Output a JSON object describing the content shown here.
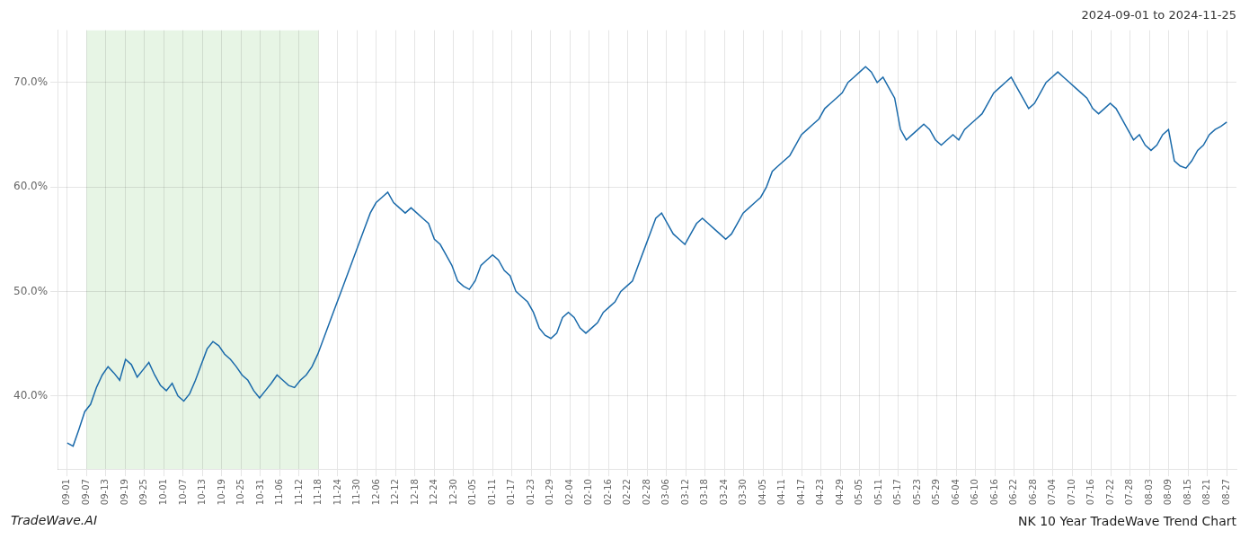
{
  "chart_data": {
    "type": "line",
    "title": "NK 10 Year TradeWave Trend Chart",
    "subtitle": "2024-09-01 to 2024-11-25",
    "annotations": [
      "TradeWave.AI"
    ],
    "color": "#1a6aaa",
    "grid": true,
    "xlim": [
      -0.5,
      60.5
    ],
    "xticks": [
      {
        "value": 0,
        "label": "09-01"
      },
      {
        "value": 1,
        "label": "09-07"
      },
      {
        "value": 2,
        "label": "09-13"
      },
      {
        "value": 3,
        "label": "09-19"
      },
      {
        "value": 4,
        "label": "09-25"
      },
      {
        "value": 5,
        "label": "10-01"
      },
      {
        "value": 6,
        "label": "10-07"
      },
      {
        "value": 7,
        "label": "10-13"
      },
      {
        "value": 8,
        "label": "10-19"
      },
      {
        "value": 9,
        "label": "10-25"
      },
      {
        "value": 10,
        "label": "10-31"
      },
      {
        "value": 11,
        "label": "11-06"
      },
      {
        "value": 12,
        "label": "11-12"
      },
      {
        "value": 13,
        "label": "11-18"
      },
      {
        "value": 14,
        "label": "11-24"
      },
      {
        "value": 15,
        "label": "11-30"
      },
      {
        "value": 16,
        "label": "12-06"
      },
      {
        "value": 17,
        "label": "12-12"
      },
      {
        "value": 18,
        "label": "12-18"
      },
      {
        "value": 19,
        "label": "12-24"
      },
      {
        "value": 20,
        "label": "12-30"
      },
      {
        "value": 21,
        "label": "01-05"
      },
      {
        "value": 22,
        "label": "01-11"
      },
      {
        "value": 23,
        "label": "01-17"
      },
      {
        "value": 24,
        "label": "01-23"
      },
      {
        "value": 25,
        "label": "01-29"
      },
      {
        "value": 26,
        "label": "02-04"
      },
      {
        "value": 27,
        "label": "02-10"
      },
      {
        "value": 28,
        "label": "02-16"
      },
      {
        "value": 29,
        "label": "02-22"
      },
      {
        "value": 30,
        "label": "02-28"
      },
      {
        "value": 31,
        "label": "03-06"
      },
      {
        "value": 32,
        "label": "03-12"
      },
      {
        "value": 33,
        "label": "03-18"
      },
      {
        "value": 34,
        "label": "03-24"
      },
      {
        "value": 35,
        "label": "03-30"
      },
      {
        "value": 36,
        "label": "04-05"
      },
      {
        "value": 37,
        "label": "04-11"
      },
      {
        "value": 38,
        "label": "04-17"
      },
      {
        "value": 39,
        "label": "04-23"
      },
      {
        "value": 40,
        "label": "04-29"
      },
      {
        "value": 41,
        "label": "05-05"
      },
      {
        "value": 42,
        "label": "05-11"
      },
      {
        "value": 43,
        "label": "05-17"
      },
      {
        "value": 44,
        "label": "05-23"
      },
      {
        "value": 45,
        "label": "05-29"
      },
      {
        "value": 46,
        "label": "06-04"
      },
      {
        "value": 47,
        "label": "06-10"
      },
      {
        "value": 48,
        "label": "06-16"
      },
      {
        "value": 49,
        "label": "06-22"
      },
      {
        "value": 50,
        "label": "06-28"
      },
      {
        "value": 51,
        "label": "07-04"
      },
      {
        "value": 52,
        "label": "07-10"
      },
      {
        "value": 53,
        "label": "07-16"
      },
      {
        "value": 54,
        "label": "07-22"
      },
      {
        "value": 55,
        "label": "07-28"
      },
      {
        "value": 56,
        "label": "08-03"
      },
      {
        "value": 57,
        "label": "08-09"
      },
      {
        "value": 58,
        "label": "08-15"
      },
      {
        "value": 59,
        "label": "08-21"
      },
      {
        "value": 60,
        "label": "08-27"
      }
    ],
    "ylim": [
      33,
      75
    ],
    "yticks": [
      {
        "value": 40.0,
        "label": "40.0%"
      },
      {
        "value": 50.0,
        "label": "50.0%"
      },
      {
        "value": 60.0,
        "label": "60.0%"
      },
      {
        "value": 70.0,
        "label": "70.0%"
      }
    ],
    "highlight": {
      "xlim": [
        1,
        13
      ],
      "color": "#d4ecd0"
    },
    "values": [
      35.5,
      35.2,
      36.8,
      38.5,
      39.2,
      40.8,
      42.0,
      42.8,
      42.2,
      41.5,
      43.5,
      43.0,
      41.8,
      42.5,
      43.2,
      42.0,
      41.0,
      40.5,
      41.2,
      40.0,
      39.5,
      40.2,
      41.5,
      43.0,
      44.5,
      45.2,
      44.8,
      44.0,
      43.5,
      42.8,
      42.0,
      41.5,
      40.5,
      39.8,
      40.5,
      41.2,
      42.0,
      41.5,
      41.0,
      40.8,
      41.5,
      42.0,
      42.8,
      44.0,
      45.5,
      47.0,
      48.5,
      50.0,
      51.5,
      53.0,
      54.5,
      56.0,
      57.5,
      58.5,
      59.0,
      59.5,
      58.5,
      58.0,
      57.5,
      58.0,
      57.5,
      57.0,
      56.5,
      55.0,
      54.5,
      53.5,
      52.5,
      51.0,
      50.5,
      50.2,
      51.0,
      52.5,
      53.0,
      53.5,
      53.0,
      52.0,
      51.5,
      50.0,
      49.5,
      49.0,
      48.0,
      46.5,
      45.8,
      45.5,
      46.0,
      47.5,
      48.0,
      47.5,
      46.5,
      46.0,
      46.5,
      47.0,
      48.0,
      48.5,
      49.0,
      50.0,
      50.5,
      51.0,
      52.5,
      54.0,
      55.5,
      57.0,
      57.5,
      56.5,
      55.5,
      55.0,
      54.5,
      55.5,
      56.5,
      57.0,
      56.5,
      56.0,
      55.5,
      55.0,
      55.5,
      56.5,
      57.5,
      58.0,
      58.5,
      59.0,
      60.0,
      61.5,
      62.0,
      62.5,
      63.0,
      64.0,
      65.0,
      65.5,
      66.0,
      66.5,
      67.5,
      68.0,
      68.5,
      69.0,
      70.0,
      70.5,
      71.0,
      71.5,
      71.0,
      70.0,
      70.5,
      69.5,
      68.5,
      65.5,
      64.5,
      65.0,
      65.5,
      66.0,
      65.5,
      64.5,
      64.0,
      64.5,
      65.0,
      64.5,
      65.5,
      66.0,
      66.5,
      67.0,
      68.0,
      69.0,
      69.5,
      70.0,
      70.5,
      69.5,
      68.5,
      67.5,
      68.0,
      69.0,
      70.0,
      70.5,
      71.0,
      70.5,
      70.0,
      69.5,
      69.0,
      68.5,
      67.5,
      67.0,
      67.5,
      68.0,
      67.5,
      66.5,
      65.5,
      64.5,
      65.0,
      64.0,
      63.5,
      64.0,
      65.0,
      65.5,
      62.5,
      62.0,
      61.8,
      62.5,
      63.5,
      64.0,
      65.0,
      65.5,
      65.8,
      66.2
    ]
  }
}
